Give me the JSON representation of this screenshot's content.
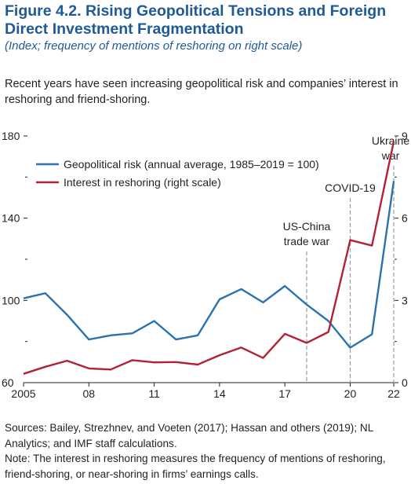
{
  "header": {
    "title": "Figure 4.2. Rising Geopolitical Tensions and Foreign Direct Investment Fragmentation",
    "subtitle": "(Index; frequency of mentions of reshoring on right scale)",
    "intro": "Recent years have seen increasing geopolitical risk and companies’ interest in reshoring and friend-shoring."
  },
  "colors": {
    "geopolitical": "#2a72b0",
    "reshoring": "#b22234",
    "axis": "#231f20",
    "event_line": "#9a9a9a",
    "title": "#1f5a97"
  },
  "chart_data": {
    "type": "line",
    "x": [
      2005,
      2006,
      2007,
      2008,
      2009,
      2010,
      2011,
      2012,
      2013,
      2014,
      2015,
      2016,
      2017,
      2018,
      2019,
      2020,
      2021,
      2022
    ],
    "x_tick_values": [
      2005,
      2008,
      2011,
      2014,
      2017,
      2020,
      2022
    ],
    "x_tick_labels": [
      "2005",
      "08",
      "11",
      "14",
      "17",
      "20",
      "22"
    ],
    "xlim": [
      2005,
      2022
    ],
    "left_axis": {
      "ylim": [
        60,
        180
      ],
      "tick_values": [
        60,
        100,
        140,
        180
      ],
      "tick_labels": [
        "60",
        "100",
        "140",
        "180"
      ],
      "minor_ticks": [
        80,
        120,
        160
      ]
    },
    "right_axis": {
      "ylim": [
        0,
        9
      ],
      "tick_values": [
        0,
        3,
        6,
        9
      ],
      "tick_labels": [
        "0",
        "3",
        "6",
        "9"
      ],
      "minor_ticks": [
        1.5,
        4.5,
        7.5
      ]
    },
    "series": [
      {
        "name": "Geopolitical risk (annual average, 1985–2019 = 100)",
        "axis": "left",
        "values": [
          101,
          103.5,
          93,
          81,
          83,
          84,
          90,
          81,
          83,
          100.5,
          105.5,
          99,
          107,
          98,
          90,
          77,
          83.5,
          158
        ]
      },
      {
        "name": "Interest in reshoring (right scale)",
        "axis": "right",
        "values": [
          0.32,
          0.58,
          0.8,
          0.52,
          0.48,
          0.82,
          0.74,
          0.75,
          0.66,
          1.0,
          1.28,
          0.9,
          1.78,
          1.45,
          1.85,
          5.2,
          5.0,
          8.8
        ]
      }
    ],
    "events": [
      {
        "x": 2018,
        "lines": [
          "US-China",
          "trade war"
        ]
      },
      {
        "x": 2020,
        "lines": [
          "COVID-19"
        ]
      },
      {
        "x": 2022,
        "lines": [
          "Ukraine",
          "war"
        ]
      }
    ],
    "legend_position": "top-left",
    "grid": false
  },
  "notes": {
    "sources": "Sources: Bailey, Strezhnev, and Voeten (2017); Hassan and others (2019); NL Analytics; and IMF staff calculations.",
    "note": "Note: The interest in reshoring measures the frequency of mentions of reshoring, friend-shoring, or near-shoring in firms’ earnings calls."
  }
}
